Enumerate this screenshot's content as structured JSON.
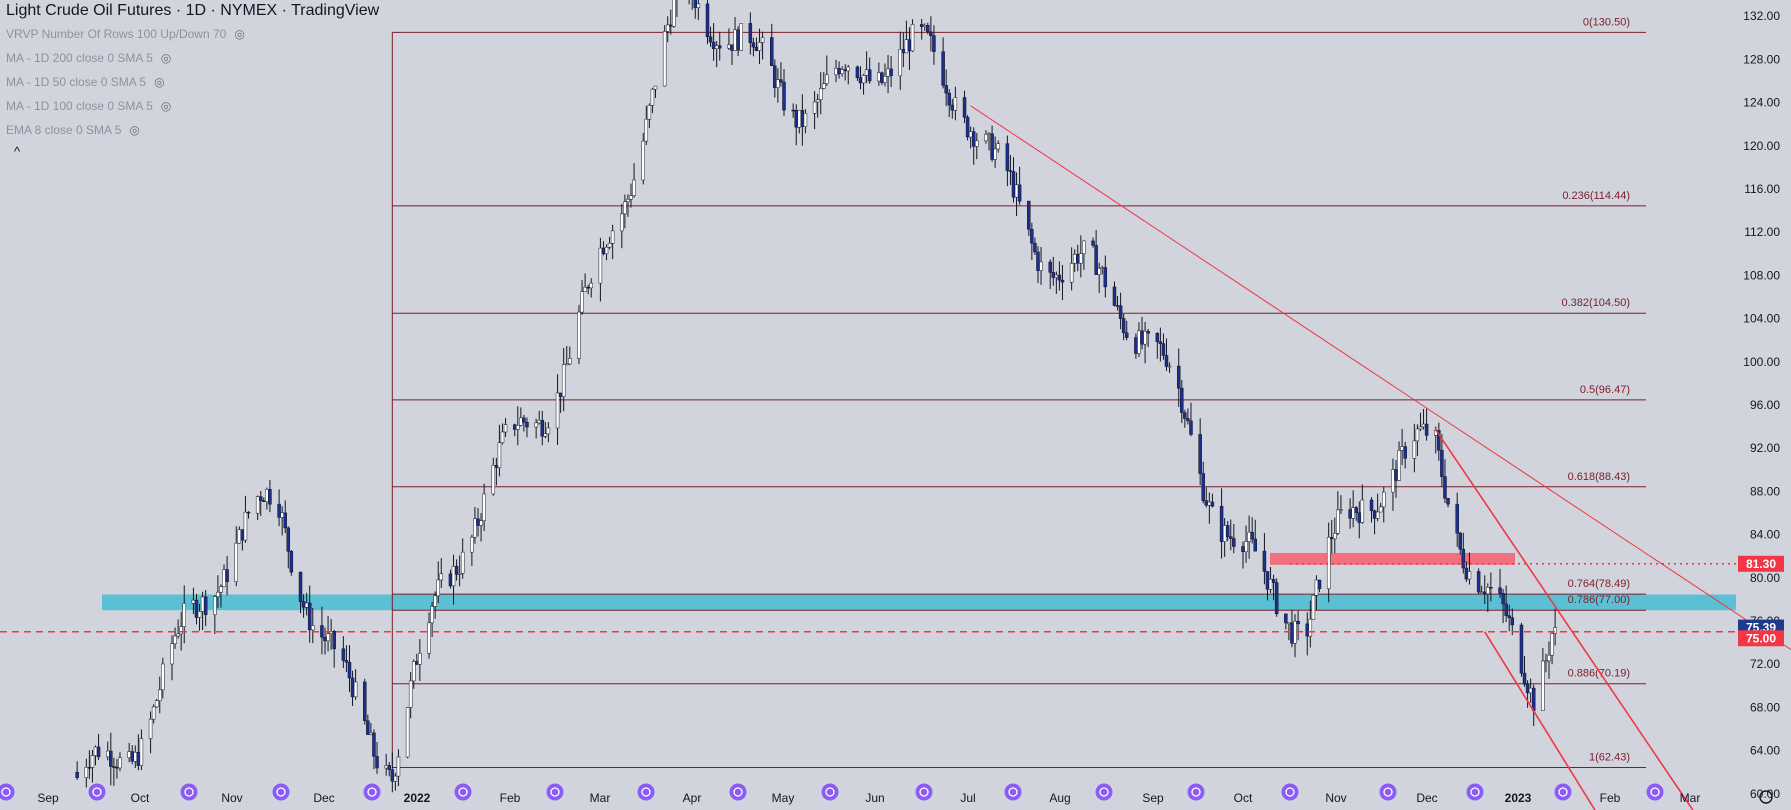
{
  "header": {
    "title": "Light Crude Oil Futures · 1D · NYMEX · TradingView",
    "indicators": [
      "VRVP Number Of Rows 100 Up/Down 70",
      "MA - 1D 200 close 0 SMA 5",
      "MA - 1D 50 close 0 SMA 5",
      "MA - 1D 100 close 0 SMA 5",
      "EMA 8 close 0 SMA 5"
    ],
    "collapse_glyph": "^"
  },
  "chart_data": {
    "type": "candlestick",
    "xaxis_ticks": [
      "Sep",
      "Oct",
      "Nov",
      "Dec",
      "2022",
      "Feb",
      "Mar",
      "Apr",
      "May",
      "Jun",
      "Jul",
      "Aug",
      "Sep",
      "Oct",
      "Nov",
      "Dec",
      "2023",
      "Feb",
      "Mar"
    ],
    "yaxis_ticks": [
      "132.00",
      "128.00",
      "124.00",
      "120.00",
      "116.00",
      "112.00",
      "108.00",
      "104.00",
      "100.00",
      "96.00",
      "92.00",
      "88.00",
      "84.00",
      "80.00",
      "76.00",
      "72.00",
      "68.00",
      "64.00",
      "60.00"
    ],
    "ylim": [
      58.5,
      133.5
    ],
    "fib_levels": [
      {
        "label": "0(130.50)",
        "value": 130.5
      },
      {
        "label": "0.236(114.44)",
        "value": 114.44
      },
      {
        "label": "0.382(104.50)",
        "value": 104.5
      },
      {
        "label": "0.5(96.47)",
        "value": 96.47
      },
      {
        "label": "0.618(88.43)",
        "value": 88.43
      },
      {
        "label": "0.764(78.49)",
        "value": 78.49
      },
      {
        "label": "0.786(77.00)",
        "value": 77.0
      },
      {
        "label": "0.886(70.19)",
        "value": 70.19
      },
      {
        "label": "1(62.43)",
        "value": 62.43
      }
    ],
    "support_zone": [
      77.0,
      78.45
    ],
    "resistance_zone": [
      81.2,
      82.3
    ],
    "horizontal_levels": [
      {
        "label": "81.30",
        "value": 81.3,
        "color": "#f23645"
      },
      {
        "label": "75.00",
        "value": 75.0,
        "color": "#f23645"
      }
    ],
    "last_price": {
      "label": "75.39",
      "value": 75.39,
      "color": "#1e3a8a"
    },
    "key_points": [
      {
        "date": "2021-08-20",
        "price": 62
      },
      {
        "date": "2021-10-25",
        "price": 85
      },
      {
        "date": "2021-12-01",
        "price": 64.5
      },
      {
        "date": "2022-03-07",
        "price": 130.5
      },
      {
        "date": "2022-06-08",
        "price": 123.7
      },
      {
        "date": "2022-09-26",
        "price": 76.3
      },
      {
        "date": "2022-11-07",
        "price": 93.7
      },
      {
        "date": "2022-12-09",
        "price": 70.0
      },
      {
        "date": "2022-12-16",
        "price": 75.39
      }
    ],
    "colors": {
      "up": "#ffffff",
      "down": "#1c2f8c",
      "fib": "#7a1f2b",
      "trend": "#f23645",
      "support": "#5bc0d3",
      "resistance": "#f0707f"
    },
    "event_markers": 19
  }
}
